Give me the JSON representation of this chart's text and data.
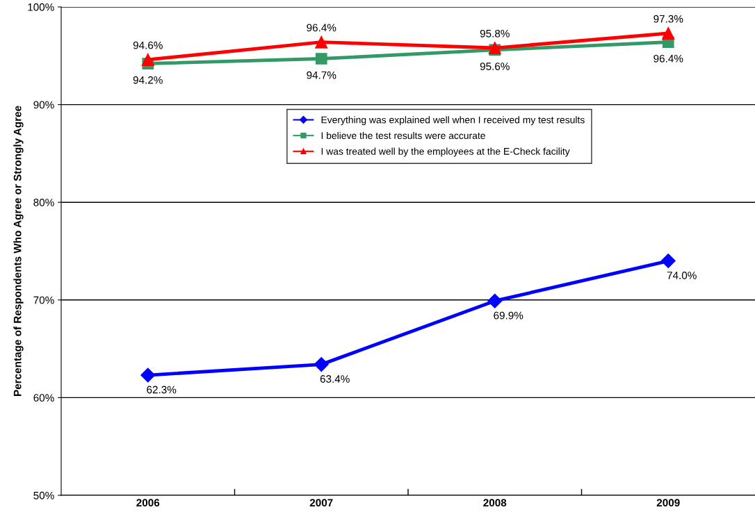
{
  "chart_data": {
    "type": "line",
    "ylabel": "Percentage of Respondents Who Agree or Strongly Agree",
    "categories": [
      "2006",
      "2007",
      "2008",
      "2009"
    ],
    "series": [
      {
        "name": "Everything was explained well when I received my test results",
        "color": "#0000ff",
        "marker": "diamond",
        "values": [
          62.3,
          63.4,
          69.9,
          74.0
        ],
        "value_labels": [
          "62.3%",
          "63.4%",
          "69.9%",
          "74.0%"
        ]
      },
      {
        "name": "I believe the test results were accurate",
        "color": "#339966",
        "marker": "square",
        "values": [
          94.2,
          94.7,
          95.6,
          96.4
        ],
        "value_labels": [
          "94.2%",
          "94.7%",
          "95.6%",
          "96.4%"
        ]
      },
      {
        "name": "I was treated well by the employees at the E-Check facility",
        "color": "#ff0000",
        "marker": "triangle",
        "values": [
          94.6,
          96.4,
          95.8,
          97.3
        ],
        "value_labels": [
          "94.6%",
          "96.4%",
          "95.8%",
          "97.3%"
        ]
      }
    ],
    "ylim": [
      50,
      100
    ],
    "yticks": [
      {
        "value": 50,
        "label": "50%"
      },
      {
        "value": 60,
        "label": "60%"
      },
      {
        "value": 70,
        "label": "70%"
      },
      {
        "value": 80,
        "label": "80%"
      },
      {
        "value": 90,
        "label": "90%"
      },
      {
        "value": 100,
        "label": "100%"
      }
    ],
    "grid": "y",
    "legend": "top",
    "line_style": "solid"
  }
}
